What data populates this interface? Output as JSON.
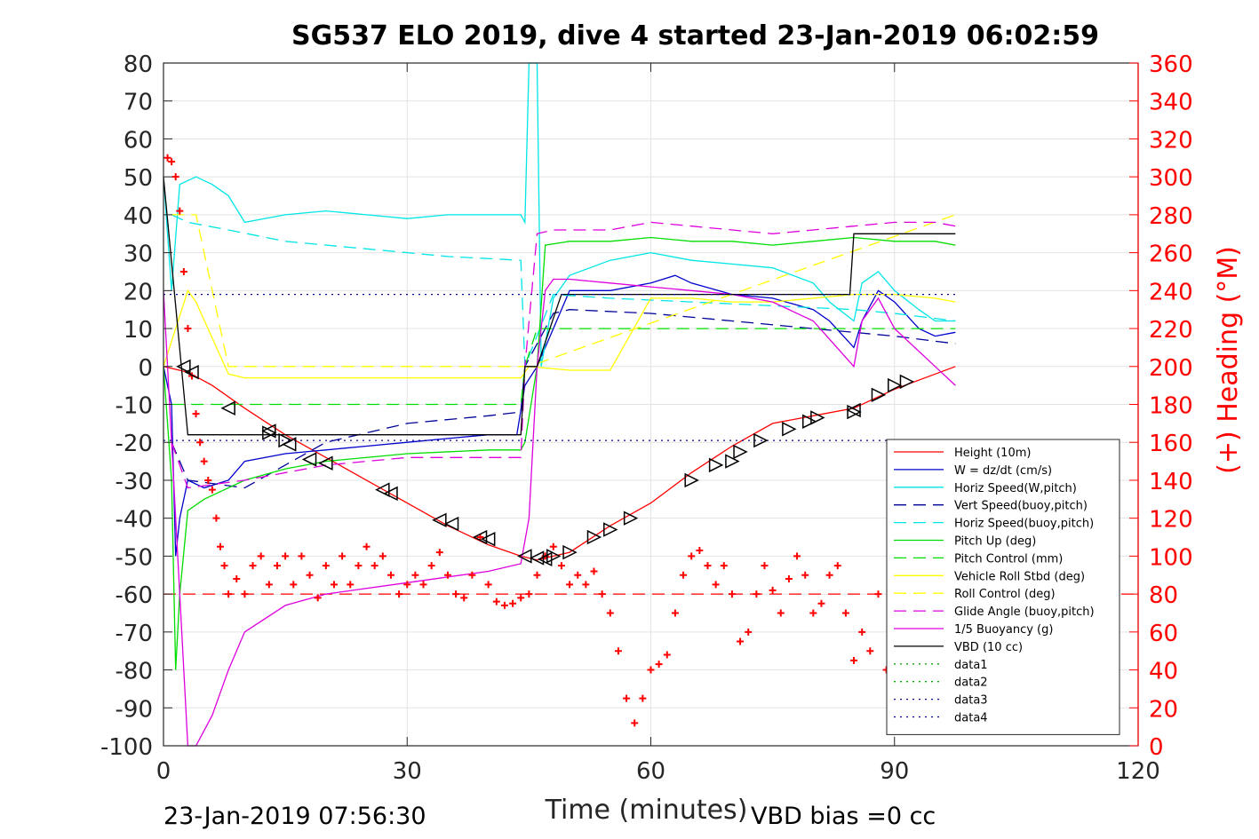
{
  "chart_data": {
    "type": "line",
    "title": "SG537 ELO 2019, dive 4 started 23-Jan-2019 06:02:59",
    "xlabel": "Time (minutes)",
    "ylabel_right": "(+) Heading (°M)",
    "footer_left": "23-Jan-2019 07:56:30",
    "footer_right": "VBD bias =0 cc",
    "xlim": [
      0,
      120
    ],
    "ylim": [
      -100,
      80
    ],
    "ylim_right": [
      0,
      360
    ],
    "x_ticks": [
      "0",
      "30",
      "60",
      "90",
      "120"
    ],
    "y_ticks": [
      "80",
      "70",
      "60",
      "50",
      "40",
      "30",
      "20",
      "10",
      "0",
      "-10",
      "-20",
      "-30",
      "-40",
      "-50",
      "-60",
      "-70",
      "-80",
      "-90",
      "-100"
    ],
    "y_ticks_right": [
      "360",
      "340",
      "320",
      "300",
      "280",
      "260",
      "240",
      "220",
      "200",
      "180",
      "160",
      "140",
      "120",
      "100",
      "80",
      "60",
      "40",
      "20",
      "0"
    ],
    "grid": true,
    "legend_position": "bottom-right",
    "colors": {
      "red": "#ff0000",
      "blue": "#0000cc",
      "cyan": "#00e5e5",
      "green": "#00dd00",
      "yellow": "#ffff00",
      "magenta": "#dd00dd",
      "black": "#000000",
      "dkgreen": "#00aa00",
      "navy": "#000099",
      "axis": "#262626",
      "grid": "#e3e3e3",
      "right_axis": "#ff0000"
    },
    "series": [
      {
        "name": "Height (10m)",
        "color": "red",
        "style": "solid",
        "x": [
          0,
          3,
          6,
          10,
          15,
          20,
          25,
          30,
          35,
          40,
          44,
          46,
          48,
          50,
          55,
          60,
          65,
          70,
          75,
          80,
          85,
          90,
          95,
          97.5
        ],
        "y": [
          0,
          -1.5,
          -5,
          -11,
          -18,
          -24,
          -30,
          -36,
          -42,
          -47,
          -50,
          -51,
          -50,
          -49,
          -42,
          -36,
          -28,
          -21,
          -15,
          -13,
          -11,
          -6,
          -2,
          0
        ]
      },
      {
        "name": "W = dz/dt (cm/s)",
        "color": "blue",
        "style": "solid",
        "x": [
          0,
          1,
          1.5,
          2,
          3,
          5,
          8,
          10,
          15,
          20,
          25,
          30,
          35,
          40,
          43.5,
          44.5,
          46,
          48,
          50,
          55,
          60,
          63,
          65,
          70,
          75,
          80,
          82,
          85,
          86,
          88,
          90,
          93,
          95,
          97.5
        ],
        "y": [
          0,
          -10,
          -50,
          -40,
          -30,
          -32,
          -30,
          -25,
          -23,
          -22,
          -21,
          -20,
          -19,
          -18,
          -18,
          -5,
          0,
          10,
          20,
          20,
          22,
          24,
          22,
          19,
          18,
          15,
          12,
          5,
          12,
          20,
          17,
          10,
          8,
          9
        ]
      },
      {
        "name": "Horiz Speed(W,pitch)",
        "color": "cyan",
        "style": "solid",
        "x": [
          0,
          1,
          2,
          4,
          6,
          8,
          10,
          15,
          20,
          25,
          30,
          35,
          40,
          44,
          44.5,
          45,
          46,
          46.5,
          48,
          50,
          55,
          60,
          65,
          70,
          75,
          80,
          82,
          85,
          86,
          88,
          90,
          93,
          95,
          97.5
        ],
        "y": [
          50,
          20,
          48,
          50,
          48,
          45,
          38,
          40,
          41,
          40,
          39,
          40,
          40,
          40,
          38,
          80,
          80,
          0,
          18,
          24,
          28,
          30,
          28,
          27,
          26,
          22,
          17,
          12,
          22,
          25,
          20,
          15,
          12,
          12
        ]
      },
      {
        "name": "Vert Speed(buoy,pitch)",
        "color": "navy",
        "style": "dashed",
        "x": [
          1,
          3,
          10,
          20,
          30,
          40,
          44,
          44.5,
          48,
          50,
          60,
          70,
          80,
          90,
          97.5
        ],
        "y": [
          -20,
          -30,
          -32,
          -20,
          -15,
          -13,
          -12,
          0,
          14,
          15,
          14,
          12,
          10,
          8,
          6
        ]
      },
      {
        "name": "Horiz Speed(buoy,pitch)",
        "color": "cyan",
        "style": "dashed",
        "x": [
          1,
          3,
          8,
          15,
          25,
          35,
          44,
          44.5,
          48,
          55,
          65,
          75,
          85,
          90,
          97.5
        ],
        "y": [
          40,
          38,
          36,
          33,
          31,
          29,
          28,
          0,
          19,
          18,
          17,
          16,
          15,
          14,
          12
        ]
      },
      {
        "name": "Pitch Up (deg)",
        "color": "green",
        "style": "solid",
        "x": [
          0,
          1,
          1.5,
          2,
          3,
          5,
          10,
          15,
          20,
          30,
          40,
          44,
          44.5,
          46,
          47,
          50,
          55,
          60,
          65,
          70,
          75,
          80,
          85,
          90,
          95,
          97.5
        ],
        "y": [
          0,
          -30,
          -80,
          -60,
          -38,
          -35,
          -30,
          -27,
          -25,
          -23,
          -22,
          -22,
          -20,
          0,
          32,
          33,
          33,
          34,
          33,
          33,
          32,
          33,
          34,
          33,
          33,
          32
        ]
      },
      {
        "name": "Pitch Control (mm)",
        "color": "green",
        "style": "dashed",
        "x": [
          1,
          44,
          44.5,
          46,
          97.5
        ],
        "y": [
          -10,
          -10,
          0,
          10,
          10
        ]
      },
      {
        "name": "Vehicle Roll Stbd (deg)",
        "color": "yellow",
        "style": "solid",
        "x": [
          0,
          3,
          4,
          8,
          10,
          20,
          30,
          40,
          44,
          45,
          50,
          55,
          60,
          65,
          70,
          75,
          80,
          85,
          90,
          95,
          97.5
        ],
        "y": [
          0,
          20,
          17,
          -2,
          -3,
          -3,
          -3,
          -3,
          -3,
          0,
          -1,
          -1,
          18,
          18,
          17,
          17,
          18,
          19,
          19,
          18,
          17
        ]
      },
      {
        "name": "Roll Control (deg)",
        "color": "yellow",
        "style": "dashed",
        "x": [
          1,
          4,
          8,
          44,
          45,
          97.5
        ],
        "y": [
          40,
          40,
          0,
          0,
          0,
          40
        ]
      },
      {
        "name": "Glide Angle (buoy,pitch)",
        "color": "magenta",
        "style": "dashed",
        "x": [
          1,
          3,
          10,
          20,
          30,
          40,
          44,
          44.5,
          46,
          48,
          55,
          60,
          65,
          70,
          75,
          80,
          85,
          90,
          95,
          97.5
        ],
        "y": [
          -20,
          -32,
          -30,
          -26,
          -24,
          -24,
          -24,
          0,
          35,
          36,
          36,
          38,
          37,
          36,
          35,
          36,
          37,
          38,
          38,
          37
        ]
      },
      {
        "name": "1/5 Buoyancy (g)",
        "color": "magenta",
        "style": "solid",
        "x": [
          0,
          2,
          3,
          4,
          6,
          8,
          10,
          15,
          20,
          30,
          40,
          44,
          45,
          46,
          47,
          48,
          50,
          55,
          60,
          65,
          70,
          75,
          80,
          85,
          86,
          88,
          90,
          95,
          97.5
        ],
        "y": [
          20,
          -60,
          -100,
          -100,
          -92,
          -80,
          -70,
          -63,
          -60,
          -57,
          -54,
          -52,
          -40,
          0,
          20,
          23,
          23,
          22,
          21,
          20,
          19,
          17,
          12,
          0,
          12,
          18,
          10,
          0,
          -5
        ]
      },
      {
        "name": "VBD (10 cc)",
        "color": "black",
        "style": "solid",
        "x": [
          0,
          3,
          10,
          20,
          30,
          40,
          44,
          44.5,
          46,
          49,
          50,
          60,
          70,
          80,
          84.5,
          85,
          90,
          97.5
        ],
        "y": [
          50,
          -18,
          -18,
          -18,
          -18,
          -18,
          -18,
          0,
          0,
          19,
          19,
          19,
          19,
          19,
          19,
          35,
          35,
          35
        ]
      },
      {
        "name": "data1",
        "color": "dkgreen",
        "style": "dotted",
        "x": [],
        "y": []
      },
      {
        "name": "data2",
        "color": "dkgreen",
        "style": "dotted",
        "x": [],
        "y": []
      },
      {
        "name": "data3",
        "color": "navy",
        "style": "dotted",
        "x": [
          0,
          97.5
        ],
        "y": [
          19,
          19
        ]
      },
      {
        "name": "data4",
        "color": "navy",
        "style": "dotted",
        "x": [
          0,
          97.5
        ],
        "y": [
          -19.5,
          -19.5
        ]
      }
    ],
    "reference_lines": [
      {
        "color": "red",
        "style": "dashed",
        "y": -60
      }
    ],
    "heading": {
      "color": "red",
      "marker": "+",
      "axis": "right",
      "x": [
        0.5,
        1,
        1.5,
        2,
        2.5,
        3,
        3.5,
        4,
        4.5,
        5,
        5.5,
        6,
        6.5,
        7,
        7.5,
        8,
        9,
        10,
        11,
        12,
        13,
        14,
        15,
        16,
        17,
        18,
        19,
        20,
        21,
        22,
        23,
        24,
        25,
        26,
        27,
        28,
        29,
        30,
        31,
        32,
        33,
        34,
        35,
        36,
        37,
        38,
        39,
        40,
        41,
        42,
        43,
        44,
        45,
        46,
        47,
        48,
        49,
        50,
        51,
        52,
        53,
        54,
        55,
        56,
        57,
        58,
        59,
        60,
        61,
        62,
        63,
        64,
        65,
        66,
        67,
        68,
        69,
        70,
        71,
        72,
        73,
        74,
        75,
        76,
        77,
        78,
        79,
        80,
        81,
        82,
        83,
        84,
        85,
        86,
        87,
        88,
        89,
        90
      ],
      "y": [
        310,
        308,
        300,
        282,
        250,
        220,
        195,
        175,
        160,
        150,
        140,
        135,
        120,
        105,
        95,
        80,
        88,
        80,
        95,
        100,
        85,
        95,
        100,
        85,
        100,
        90,
        78,
        95,
        85,
        100,
        85,
        95,
        105,
        95,
        100,
        90,
        80,
        85,
        90,
        85,
        95,
        102,
        90,
        80,
        78,
        90,
        110,
        85,
        76,
        74,
        75,
        78,
        80,
        90,
        100,
        105,
        95,
        85,
        90,
        85,
        92,
        80,
        70,
        50,
        25,
        12,
        25,
        40,
        43,
        48,
        70,
        90,
        100,
        103,
        95,
        85,
        95,
        80,
        55,
        60,
        80,
        95,
        82,
        70,
        88,
        100,
        90,
        70,
        75,
        90,
        95,
        70,
        45,
        60,
        50,
        80,
        40,
        55
      ]
    },
    "triangles": {
      "color": "black",
      "left": [
        [
          2.5,
          0
        ],
        [
          3.5,
          -1.5
        ],
        [
          8,
          -11
        ],
        [
          13,
          -17
        ],
        [
          15.5,
          -20.5
        ],
        [
          18,
          -24.5
        ],
        [
          20,
          -25.5
        ],
        [
          27,
          -32.5
        ],
        [
          28,
          -33.5
        ],
        [
          34,
          -40.5
        ],
        [
          35.5,
          -41.5
        ],
        [
          39,
          -45
        ],
        [
          40,
          -45.5
        ],
        [
          44.5,
          -50
        ],
        [
          47,
          -50.8
        ],
        [
          46,
          -50.5
        ],
        [
          85,
          -11.5
        ]
      ],
      "right": [
        [
          13,
          -17.5
        ],
        [
          15,
          -19.5
        ],
        [
          48,
          -50
        ],
        [
          50,
          -49
        ],
        [
          53,
          -45
        ],
        [
          55,
          -43
        ],
        [
          57.5,
          -40
        ],
        [
          65,
          -30
        ],
        [
          68,
          -26
        ],
        [
          70,
          -25
        ],
        [
          71,
          -22.5
        ],
        [
          73.5,
          -19.5
        ],
        [
          77,
          -16.5
        ],
        [
          79.5,
          -14.5
        ],
        [
          80.5,
          -13.5
        ],
        [
          85,
          -12
        ],
        [
          88,
          -7.5
        ],
        [
          90,
          -5
        ],
        [
          91.5,
          -4
        ]
      ]
    }
  }
}
